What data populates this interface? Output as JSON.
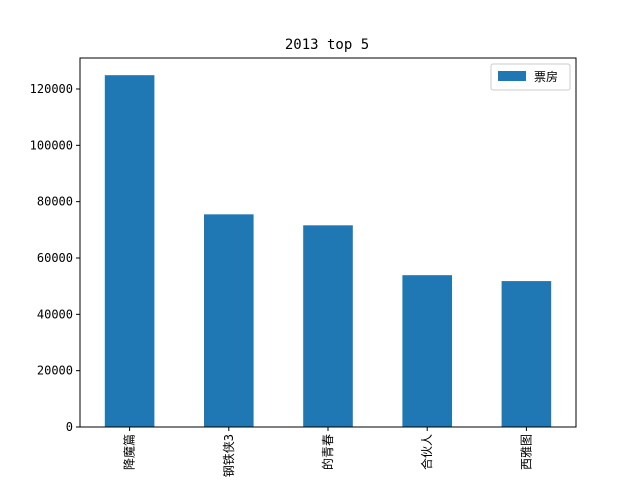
{
  "chart_data": {
    "type": "bar",
    "title": "2013 top 5",
    "categories": [
      "降魔篇",
      "钢铁侠3",
      "的青春",
      "合伙人",
      "西雅图"
    ],
    "series": [
      {
        "name": "票房",
        "values": [
          124900,
          75500,
          71600,
          53900,
          51800
        ]
      }
    ],
    "ylim": [
      0,
      131000
    ],
    "yticks": [
      0,
      20000,
      40000,
      60000,
      80000,
      100000,
      120000
    ],
    "xlabel": "",
    "ylabel": "",
    "grid": false,
    "legend": "top-right",
    "colors": {
      "bar": "#1f77b4",
      "axis": "#000000"
    }
  }
}
